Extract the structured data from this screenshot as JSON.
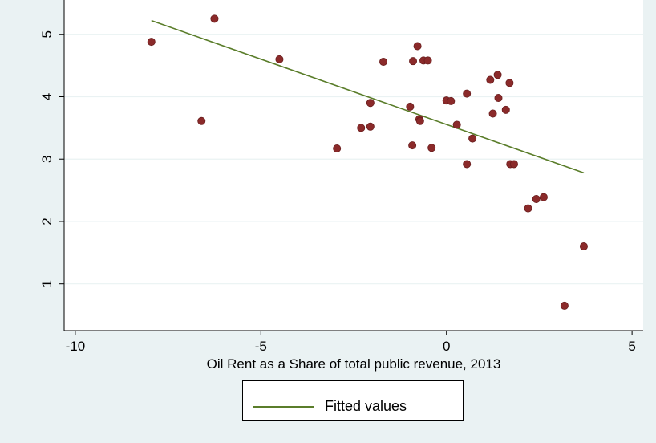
{
  "chart_data": {
    "type": "scatter",
    "title": "",
    "xlabel": "Oil Rent as a Share of total public revenue, 2013",
    "ylabel": "",
    "xlim": [
      -10.3,
      5.3
    ],
    "ylim": [
      0.25,
      5.55
    ],
    "x_ticks": [
      -10,
      -5,
      0,
      5
    ],
    "x_tick_labels": [
      "-10",
      "-5",
      "0",
      "5"
    ],
    "y_ticks": [
      1,
      2,
      3,
      4,
      5
    ],
    "y_tick_labels": [
      "1",
      "2",
      "3",
      "4",
      "5"
    ],
    "grid": "horizontal",
    "legend_position": "bottom",
    "colors": {
      "points": "#8b2a2a",
      "fit_line": "#5a7d2a",
      "background": "#eaf2f3",
      "plot_area": "#ffffff"
    },
    "series": [
      {
        "kind": "scatter",
        "points": [
          {
            "x": -7.95,
            "y": 4.88
          },
          {
            "x": -6.25,
            "y": 5.25
          },
          {
            "x": -6.6,
            "y": 3.61
          },
          {
            "x": -4.5,
            "y": 4.6
          },
          {
            "x": -2.95,
            "y": 3.17
          },
          {
            "x": -2.3,
            "y": 3.5
          },
          {
            "x": -2.05,
            "y": 3.9
          },
          {
            "x": -2.05,
            "y": 3.52
          },
          {
            "x": -1.7,
            "y": 4.56
          },
          {
            "x": -0.98,
            "y": 3.84
          },
          {
            "x": -0.92,
            "y": 3.22
          },
          {
            "x": -0.9,
            "y": 4.57
          },
          {
            "x": -0.78,
            "y": 4.81
          },
          {
            "x": -0.73,
            "y": 3.64
          },
          {
            "x": -0.71,
            "y": 3.61
          },
          {
            "x": -0.62,
            "y": 4.58
          },
          {
            "x": -0.5,
            "y": 4.58
          },
          {
            "x": -0.4,
            "y": 3.18
          },
          {
            "x": 0.0,
            "y": 3.94
          },
          {
            "x": 0.12,
            "y": 3.93
          },
          {
            "x": 0.28,
            "y": 3.55
          },
          {
            "x": 0.55,
            "y": 4.05
          },
          {
            "x": 0.55,
            "y": 2.92
          },
          {
            "x": 0.7,
            "y": 3.33
          },
          {
            "x": 1.18,
            "y": 4.27
          },
          {
            "x": 1.25,
            "y": 3.73
          },
          {
            "x": 1.38,
            "y": 4.35
          },
          {
            "x": 1.4,
            "y": 3.98
          },
          {
            "x": 1.6,
            "y": 3.79
          },
          {
            "x": 1.7,
            "y": 4.22
          },
          {
            "x": 1.72,
            "y": 2.92
          },
          {
            "x": 1.82,
            "y": 2.92
          },
          {
            "x": 2.2,
            "y": 2.21
          },
          {
            "x": 2.42,
            "y": 2.36
          },
          {
            "x": 2.62,
            "y": 2.39
          },
          {
            "x": 3.18,
            "y": 0.65
          },
          {
            "x": 3.7,
            "y": 1.6
          }
        ]
      },
      {
        "kind": "line",
        "name": "Fitted values",
        "x": [
          -7.95,
          3.7
        ],
        "y": [
          5.22,
          2.78
        ]
      }
    ],
    "legend": [
      "Fitted values"
    ]
  }
}
